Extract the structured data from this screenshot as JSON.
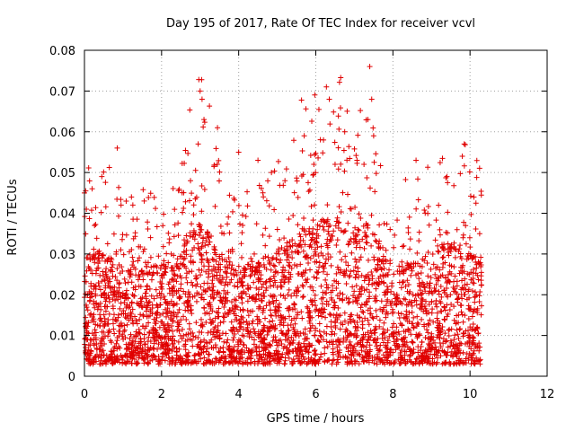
{
  "chart_data": {
    "type": "scatter",
    "title": "Day 195 of 2017, Rate Of TEC Index for receiver vcvl",
    "xlabel": "GPS time / hours",
    "ylabel": "ROTI / TECUs",
    "xlim": [
      0,
      12
    ],
    "ylim": [
      0,
      0.08
    ],
    "x_ticks": [
      "0",
      "2",
      "4",
      "6",
      "8",
      "10",
      "12"
    ],
    "y_ticks": [
      "0",
      "0.01",
      "0.02",
      "0.03",
      "0.04",
      "0.05",
      "0.06",
      "0.07",
      "0.08"
    ],
    "x_tick_values": [
      0,
      2,
      4,
      6,
      8,
      10,
      12
    ],
    "y_tick_values": [
      0,
      0.01,
      0.02,
      0.03,
      0.04,
      0.05,
      0.06,
      0.07,
      0.08
    ],
    "grid": true,
    "marker": "plus",
    "series": [
      {
        "name": "ROTI",
        "color": "#e00000",
        "x_range": [
          0.0,
          10.3
        ],
        "typical_range": [
          0.005,
          0.025
        ],
        "notable_points": [
          {
            "x": 0.0,
            "y": 0.045
          },
          {
            "x": 0.05,
            "y": 0.041
          },
          {
            "x": 0.2,
            "y": 0.046
          },
          {
            "x": 0.45,
            "y": 0.049
          },
          {
            "x": 0.85,
            "y": 0.056
          },
          {
            "x": 0.95,
            "y": 0.042
          },
          {
            "x": 1.55,
            "y": 0.043
          },
          {
            "x": 2.25,
            "y": 0.03
          },
          {
            "x": 2.75,
            "y": 0.048
          },
          {
            "x": 2.95,
            "y": 0.057
          },
          {
            "x": 3.0,
            "y": 0.07
          },
          {
            "x": 3.05,
            "y": 0.068
          },
          {
            "x": 3.1,
            "y": 0.063
          },
          {
            "x": 3.45,
            "y": 0.061
          },
          {
            "x": 4.0,
            "y": 0.055
          },
          {
            "x": 4.5,
            "y": 0.053
          },
          {
            "x": 4.85,
            "y": 0.05
          },
          {
            "x": 5.2,
            "y": 0.048
          },
          {
            "x": 5.7,
            "y": 0.059
          },
          {
            "x": 5.95,
            "y": 0.052
          },
          {
            "x": 6.2,
            "y": 0.058
          },
          {
            "x": 6.35,
            "y": 0.068
          },
          {
            "x": 6.5,
            "y": 0.052
          },
          {
            "x": 6.75,
            "y": 0.06
          },
          {
            "x": 7.25,
            "y": 0.052
          },
          {
            "x": 7.35,
            "y": 0.063
          },
          {
            "x": 7.4,
            "y": 0.076
          },
          {
            "x": 7.45,
            "y": 0.068
          },
          {
            "x": 7.5,
            "y": 0.059
          },
          {
            "x": 8.6,
            "y": 0.053
          },
          {
            "x": 9.4,
            "y": 0.049
          },
          {
            "x": 9.8,
            "y": 0.054
          },
          {
            "x": 9.85,
            "y": 0.057
          },
          {
            "x": 10.1,
            "y": 0.044
          },
          {
            "x": 10.25,
            "y": 0.035
          }
        ]
      }
    ]
  }
}
